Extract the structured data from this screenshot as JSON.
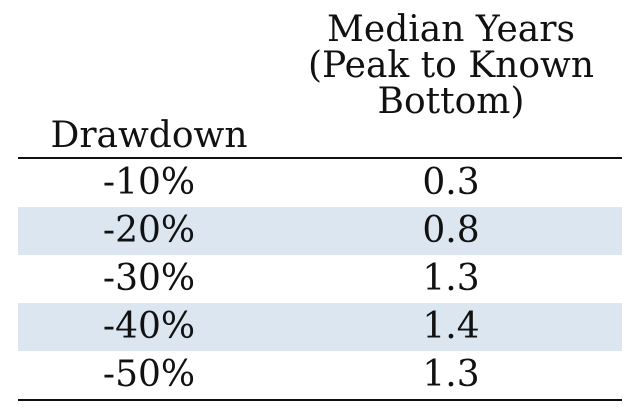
{
  "table": {
    "headers": {
      "drawdown": "Drawdown",
      "median_years_lines": [
        "Median Years",
        "(Peak to Known",
        "Bottom)"
      ]
    },
    "rows": [
      {
        "drawdown": "-10%",
        "median_years": "0.3"
      },
      {
        "drawdown": "-20%",
        "median_years": "0.8"
      },
      {
        "drawdown": "-30%",
        "median_years": "1.3"
      },
      {
        "drawdown": "-40%",
        "median_years": "1.4"
      },
      {
        "drawdown": "-50%",
        "median_years": "1.3"
      }
    ],
    "colors": {
      "shaded_row": "#dce6f1",
      "rule": "#111111"
    }
  }
}
